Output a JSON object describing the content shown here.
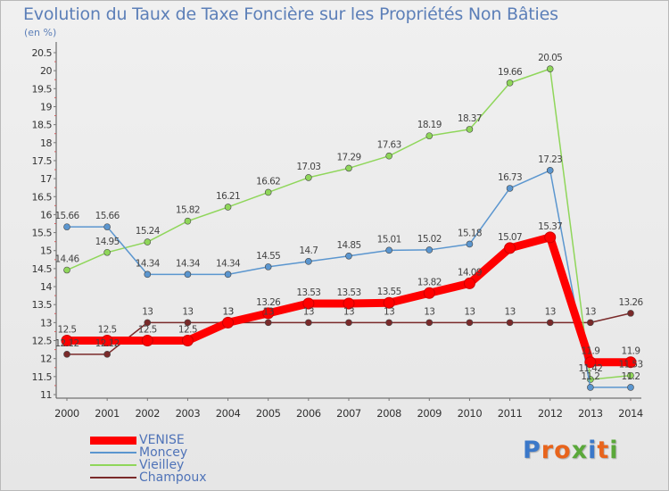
{
  "header": {
    "title": "Evolution du Taux de Taxe Foncière sur les Propriétés Non Bâties",
    "subtitle": "(en %)"
  },
  "brand": {
    "letters": [
      "P",
      "r",
      "o",
      "x",
      "i",
      "t",
      "i"
    ],
    "colors": [
      "#3b78c9",
      "#e8641c",
      "#e8641c",
      "#5aa83a",
      "#3b78c9",
      "#e8641c",
      "#5aa83a"
    ]
  },
  "chart_data": {
    "type": "line",
    "title": "Evolution du Taux de Taxe Foncière sur les Propriétés Non Bâties",
    "subtitle": "(en %)",
    "x": [
      "2000",
      "2001",
      "2002",
      "2003",
      "2004",
      "2005",
      "2006",
      "2007",
      "2008",
      "2009",
      "2010",
      "2011",
      "2012",
      "2013",
      "2014"
    ],
    "ylim": [
      11,
      20.5
    ],
    "yticks": [
      "11",
      "11.5",
      "12",
      "12.5",
      "13",
      "13.5",
      "14",
      "14.5",
      "15",
      "15.5",
      "16",
      "16.5",
      "17",
      "17.5",
      "18",
      "18.5",
      "19",
      "19.5",
      "20",
      "20.5"
    ],
    "grid": false,
    "legend_position": "bottom-left",
    "series": [
      {
        "name": "VENISE",
        "color": "#ff0000",
        "values": [
          12.5,
          12.5,
          12.5,
          12.5,
          13,
          13.26,
          13.53,
          13.53,
          13.55,
          13.82,
          14.09,
          15.07,
          15.37,
          11.9,
          11.9
        ],
        "labels": [
          "12.5",
          "12.5",
          "12.5",
          "12.5",
          "13",
          "13.26",
          "13.53",
          "13.53",
          "13.55",
          "13.82",
          "14.09",
          "15.07",
          "15.37",
          "11.9",
          "11.9"
        ]
      },
      {
        "name": "Moncey",
        "color": "#5b96cf",
        "values": [
          15.66,
          15.66,
          14.34,
          14.34,
          14.34,
          14.55,
          14.7,
          14.85,
          15.01,
          15.02,
          15.18,
          16.73,
          17.23,
          11.2,
          11.2
        ],
        "labels": [
          "15.66",
          "15.66",
          "14.34",
          "14.34",
          "14.34",
          "14.55",
          "14.7",
          "14.85",
          "15.01",
          "15.02",
          "15.18",
          "16.73",
          "17.23",
          "11.2",
          "11.2"
        ]
      },
      {
        "name": "Vieilley",
        "color": "#8fd65a",
        "values": [
          14.46,
          14.95,
          15.24,
          15.82,
          16.21,
          16.62,
          17.03,
          17.29,
          17.63,
          18.19,
          18.37,
          19.66,
          20.05,
          11.42,
          11.53
        ],
        "labels": [
          "14.46",
          "14.95",
          "15.24",
          "15.82",
          "16.21",
          "16.62",
          "17.03",
          "17.29",
          "17.63",
          "18.19",
          "18.37",
          "19.66",
          "20.05",
          "11.42",
          "11.53"
        ]
      },
      {
        "name": "Champoux",
        "color": "#7a2a2a",
        "values": [
          12.12,
          12.12,
          13,
          13,
          13,
          13,
          13,
          13,
          13,
          13,
          13,
          13,
          13,
          13,
          13.26
        ],
        "labels": [
          "12.12",
          "12.12",
          "13",
          "13",
          "13",
          "13",
          "13",
          "13",
          "13",
          "13",
          "13",
          "13",
          "13",
          "13",
          "13.26"
        ]
      }
    ]
  }
}
